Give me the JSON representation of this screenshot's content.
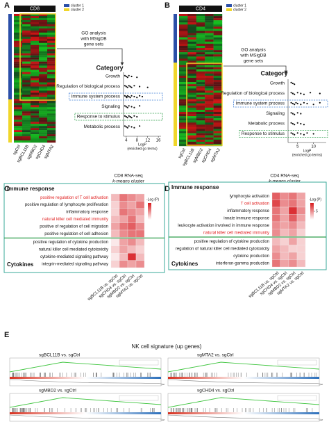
{
  "panels": {
    "a": {
      "label": "A",
      "header": "CD8",
      "legend": [
        {
          "name": "cluster 1",
          "color": "#2b4fa8"
        },
        {
          "name": "cluster 2",
          "color": "#f0d62a"
        }
      ],
      "samples": [
        "sgCtrl",
        "sgBCL11B",
        "sgMBD2",
        "sgCHD4",
        "sgMTA2"
      ],
      "go_note": [
        "GO analysis",
        "with MSigDB",
        "gene sets"
      ],
      "dot_title": "Category",
      "categories": [
        {
          "name": "Growth",
          "values": [
            3.5,
            4,
            4.5,
            5,
            6,
            8
          ]
        },
        {
          "name": "Regulation of biological process",
          "values": [
            3.5,
            4,
            4.5,
            5,
            5.5,
            6,
            7,
            9,
            12
          ]
        },
        {
          "name": "Immune system process",
          "values": [
            3.5,
            4,
            4.2,
            4.5,
            5,
            5.5,
            6,
            7,
            8,
            9,
            10
          ],
          "box": "#3a7bd5"
        },
        {
          "name": "Signaling",
          "values": [
            3.5,
            4,
            4.5,
            5,
            6,
            7,
            9
          ]
        },
        {
          "name": "Response to stimulus",
          "values": [
            3.5,
            4,
            4.5,
            5,
            5.5,
            6,
            7,
            8
          ],
          "box": "#2e9e4a"
        },
        {
          "name": "Metabolic process",
          "values": [
            3.5,
            4,
            4.5,
            5,
            6,
            7,
            9
          ]
        }
      ],
      "xlim": [
        3,
        17
      ],
      "xticks": [
        4,
        8,
        12,
        16
      ],
      "xlabel": [
        "LogP",
        "(enriched go terms)"
      ]
    },
    "b": {
      "label": "B",
      "header": "CD4",
      "legend": [
        {
          "name": "cluster 1",
          "color": "#2b4fa8"
        },
        {
          "name": "cluster 2",
          "color": "#f0d62a"
        }
      ],
      "samples": [
        "sgCtrl",
        "sgBCL11B",
        "sgMBD2",
        "sgCHD4",
        "sgMTA2"
      ],
      "go_note": [
        "GO analysis",
        "with MSigDB",
        "gene sets"
      ],
      "dot_title": "Category",
      "categories": [
        {
          "name": "Growth",
          "values": [
            3,
            3.5,
            4
          ]
        },
        {
          "name": "Regulation of biological process",
          "values": [
            3,
            3.5,
            4,
            5,
            6,
            7,
            9,
            12
          ]
        },
        {
          "name": "Immune system process",
          "values": [
            3,
            3.5,
            4,
            4.5,
            5,
            6,
            7,
            8,
            10,
            12
          ],
          "box": "#3a7bd5"
        },
        {
          "name": "Signaling",
          "values": [
            3,
            3.5,
            4,
            5,
            6
          ]
        },
        {
          "name": "Metabolic process",
          "values": [
            3,
            3.5,
            4,
            5,
            6,
            7
          ]
        },
        {
          "name": "Response to stimulus",
          "values": [
            3,
            3.5,
            4,
            5,
            6,
            7,
            8,
            10
          ],
          "box": "#2e9e4a"
        }
      ],
      "xlim": [
        2,
        14
      ],
      "xticks": [
        5,
        10
      ],
      "xlabel": [
        "LogP",
        "(enriched go terms)"
      ]
    },
    "c": {
      "label": "C",
      "title": [
        "CD8 RNA-seq",
        "k-means cluster"
      ],
      "groups": [
        {
          "name": "Immune response",
          "rows": [
            {
              "name": "positive regulation of T cell activation",
              "values": [
                3,
                6,
                5,
                4
              ],
              "highlight": true
            },
            {
              "name": "positive regulation of lymphocyte proliferation",
              "values": [
                2,
                5,
                4,
                6
              ]
            },
            {
              "name": "inflammatory response",
              "values": [
                2,
                6,
                5,
                4
              ]
            },
            {
              "name": "natural killer cell mediated immunity",
              "values": [
                3,
                4,
                6,
                3
              ],
              "highlight": true
            },
            {
              "name": "positive of regulation of cell migration",
              "values": [
                4,
                6,
                7,
                5
              ]
            },
            {
              "name": "positive regulation of cell adhesion",
              "values": [
                3,
                5,
                6,
                6
              ]
            }
          ]
        },
        {
          "name": "Cytokines",
          "rows": [
            {
              "name": "positive regulation of cytokine production",
              "values": [
                1,
                4,
                5,
                3
              ]
            },
            {
              "name": "natural killer cell mediated cytotoxicity",
              "values": [
                2,
                4,
                3,
                2
              ]
            },
            {
              "name": "cytokine-mediated signaling pathway",
              "values": [
                1,
                3,
                9,
                3
              ]
            },
            {
              "name": "integrin-mediated signaling pathway",
              "values": [
                2,
                5,
                4,
                5
              ]
            }
          ]
        }
      ],
      "columns": [
        "sgBCL11B vs. sgCtrl",
        "sgCHD4 vs. sgCtrl",
        "sgMBD2 vs. sgCtrl",
        "sgMTA2 vs. sgCtrl"
      ],
      "colorbar_title": "-Log (P)",
      "clim": [
        0,
        10
      ]
    },
    "d": {
      "label": "D",
      "title": [
        "CD4 RNA-seq",
        "k-means cluster"
      ],
      "groups": [
        {
          "name": "Immune response",
          "rows": [
            {
              "name": "lymphocyte activation",
              "values": [
                7,
                5,
                6,
                4
              ]
            },
            {
              "name": "T cell activation",
              "values": [
                8,
                5,
                6,
                4
              ],
              "highlight": true
            },
            {
              "name": "inflammatory response",
              "values": [
                6,
                4,
                9,
                5
              ]
            },
            {
              "name": "innate immune response",
              "values": [
                6,
                4,
                7,
                4
              ]
            },
            {
              "name": "leukocyte activation involved in immune response",
              "values": [
                5,
                4,
                5,
                3
              ]
            },
            {
              "name": "natural killer cell mediated immunity",
              "values": [
                5,
                3,
                4,
                2
              ],
              "highlight": true
            }
          ]
        },
        {
          "name": "Cytokines",
          "rows": [
            {
              "name": "positive regulation of cytokine production",
              "values": [
                3,
                2,
                4,
                2
              ]
            },
            {
              "name": "regulation of natural killer cell mediated cytotoxicity",
              "values": [
                4,
                3,
                2,
                2
              ]
            },
            {
              "name": "cytokine production",
              "values": [
                5,
                3,
                4,
                2
              ]
            },
            {
              "name": "interferon-gamma production",
              "values": [
                6,
                4,
                5,
                3
              ]
            }
          ]
        }
      ],
      "columns": [
        "sgBCL11B vs. sgCtrl",
        "sgCHD4 vs. sgCtrl",
        "sgMBD2 vs. sgCtrl",
        "sgMTA2 vs. sgCtrl"
      ],
      "colorbar_title": "-Log (P)",
      "clim": [
        0,
        10
      ],
      "colorbar_ticks": [
        5
      ]
    },
    "e": {
      "label": "E",
      "title": "NK cell signature  (up genes)",
      "plots": [
        "sgBCL11B vs. sgCtrl",
        "sgMTA2 vs. sgCtrl",
        "sgMBD2 vs. sgCtrl",
        "sgCHD4 vs. sgCtrl"
      ]
    }
  }
}
